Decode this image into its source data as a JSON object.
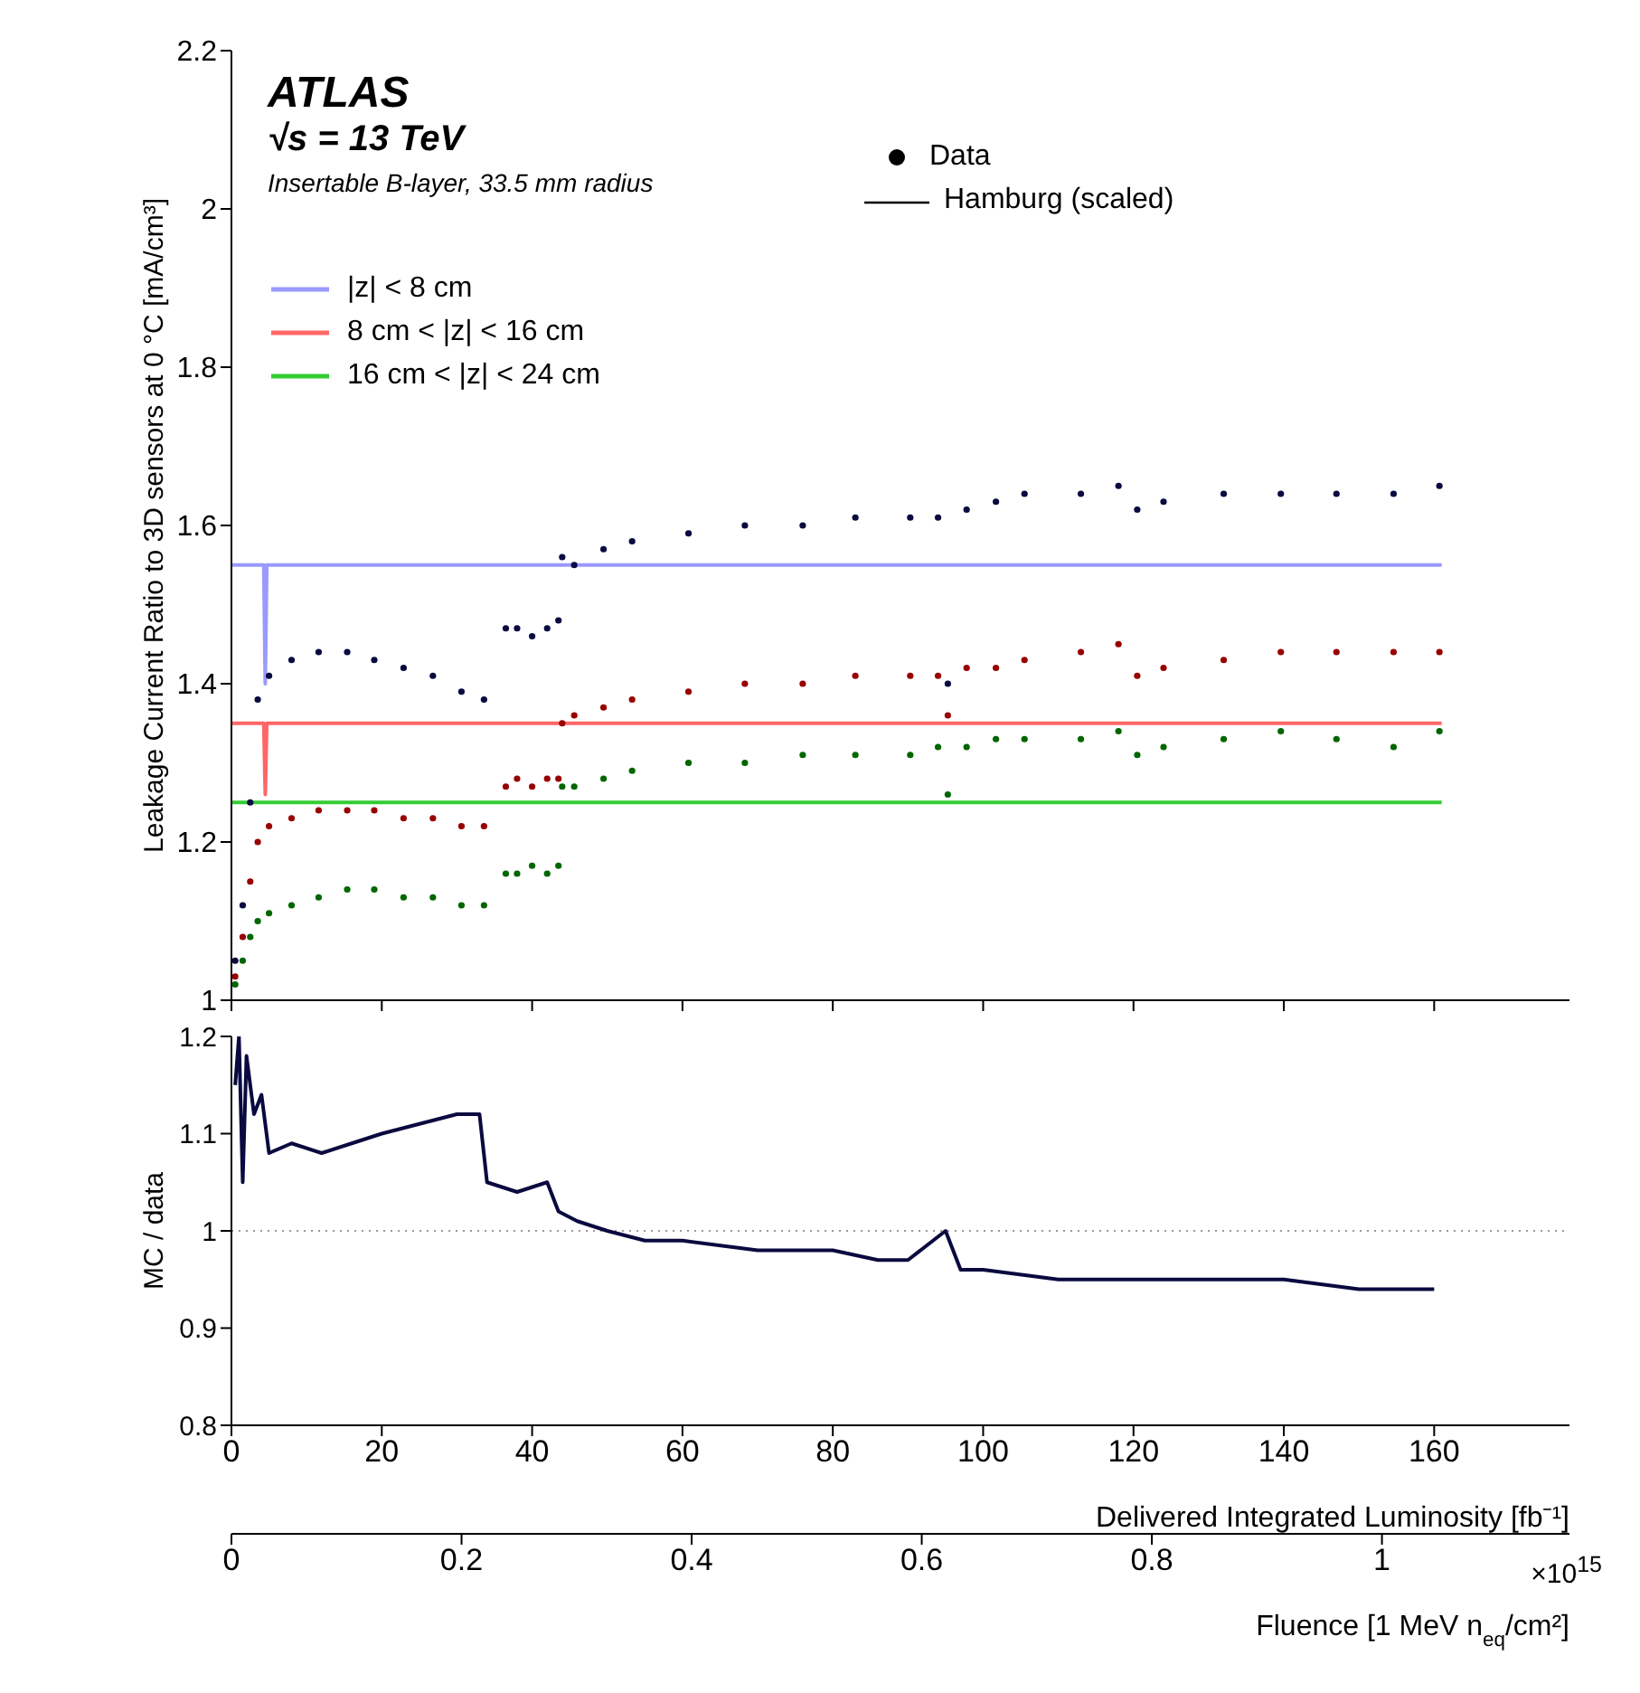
{
  "chart_data": [
    {
      "type": "scatter",
      "title": "ATLAS",
      "subtitle": "√s = 13 TeV",
      "ylabel": "Leakage Current Ratio to 3D sensors at 0 °C [mA/cm³]",
      "annotations": [
        "Insertable B-layer, 33.5 mm radius",
        "Data",
        "Hamburg (scaled)"
      ],
      "xlim": [
        0,
        178
      ],
      "xticks": [
        0,
        20,
        40,
        60,
        80,
        100,
        120,
        140,
        160
      ],
      "ylim": [
        1,
        2.2
      ],
      "yticks": [
        1,
        1.2,
        1.4,
        1.6,
        1.8,
        2,
        2.2
      ],
      "tick_labels": "y",
      "legend": "top left",
      "grid": false,
      "series": [
        {
          "name": "|z| < 8 cm",
          "type": "line",
          "color": "#9999ff",
          "marker": "none",
          "x": [
            0,
            4.3,
            4.5,
            4.7,
            161
          ],
          "values": [
            1.55,
            1.55,
            1.4,
            1.55,
            1.55
          ]
        },
        {
          "name": "8 cm < |z| < 16 cm",
          "type": "line",
          "color": "#ff6666",
          "marker": "none",
          "x": [
            0,
            4.3,
            4.5,
            4.7,
            161
          ],
          "values": [
            1.35,
            1.35,
            1.26,
            1.35,
            1.35
          ]
        },
        {
          "name": "16 cm < |z| < 24 cm",
          "type": "line",
          "color": "#33cc33",
          "marker": "none",
          "x": [
            0,
            161
          ],
          "values": [
            1.25,
            1.25
          ]
        },
        {
          "color": "#0a0a40",
          "marker": "circle",
          "x": [
            0.5,
            1.5,
            2.5,
            3.5,
            5,
            8,
            11.6,
            15.4,
            19,
            22.9,
            26.8,
            30.6,
            33.6,
            36.5,
            38,
            40,
            42,
            43.5,
            44,
            45.6,
            49.5,
            53.3,
            60.8,
            68.3,
            76,
            83,
            90.3,
            94,
            95.3,
            97.8,
            101.7,
            105.5,
            113,
            118,
            120.5,
            124,
            132,
            139.6,
            147,
            154.6,
            160.7
          ],
          "values": [
            1.05,
            1.12,
            1.25,
            1.38,
            1.41,
            1.43,
            1.44,
            1.44,
            1.43,
            1.42,
            1.41,
            1.39,
            1.38,
            1.47,
            1.47,
            1.46,
            1.47,
            1.48,
            1.56,
            1.55,
            1.57,
            1.58,
            1.59,
            1.6,
            1.6,
            1.61,
            1.61,
            1.61,
            1.4,
            1.62,
            1.63,
            1.64,
            1.64,
            1.65,
            1.62,
            1.63,
            1.64,
            1.64,
            1.64,
            1.64,
            1.65
          ]
        },
        {
          "color": "#990000",
          "marker": "circle",
          "x": [
            0.5,
            1.5,
            2.5,
            3.5,
            5,
            8,
            11.6,
            15.4,
            19,
            22.9,
            26.8,
            30.6,
            33.6,
            36.5,
            38,
            40,
            42,
            43.5,
            44,
            45.6,
            49.5,
            53.3,
            60.8,
            68.3,
            76,
            83,
            90.3,
            94,
            95.3,
            97.8,
            101.7,
            105.5,
            113,
            118,
            120.5,
            124,
            132,
            139.6,
            147,
            154.6,
            160.7
          ],
          "values": [
            1.03,
            1.08,
            1.15,
            1.2,
            1.22,
            1.23,
            1.24,
            1.24,
            1.24,
            1.23,
            1.23,
            1.22,
            1.22,
            1.27,
            1.28,
            1.27,
            1.28,
            1.28,
            1.35,
            1.36,
            1.37,
            1.38,
            1.39,
            1.4,
            1.4,
            1.41,
            1.41,
            1.41,
            1.36,
            1.42,
            1.42,
            1.43,
            1.44,
            1.45,
            1.41,
            1.42,
            1.43,
            1.44,
            1.44,
            1.44,
            1.44
          ]
        },
        {
          "color": "#006600",
          "marker": "circle",
          "x": [
            0.5,
            1.5,
            2.5,
            3.5,
            5,
            8,
            11.6,
            15.4,
            19,
            22.9,
            26.8,
            30.6,
            33.6,
            36.5,
            38,
            40,
            42,
            43.5,
            44,
            45.6,
            49.5,
            53.3,
            60.8,
            68.3,
            76,
            83,
            90.3,
            94,
            95.3,
            97.8,
            101.7,
            105.5,
            113,
            118,
            120.5,
            124,
            132,
            139.6,
            147,
            154.6,
            160.7
          ],
          "values": [
            1.02,
            1.05,
            1.08,
            1.1,
            1.11,
            1.12,
            1.13,
            1.14,
            1.14,
            1.13,
            1.13,
            1.12,
            1.12,
            1.16,
            1.16,
            1.17,
            1.16,
            1.17,
            1.27,
            1.27,
            1.28,
            1.29,
            1.3,
            1.3,
            1.31,
            1.31,
            1.31,
            1.32,
            1.26,
            1.32,
            1.33,
            1.33,
            1.33,
            1.34,
            1.31,
            1.32,
            1.33,
            1.34,
            1.33,
            1.32,
            1.34
          ]
        }
      ]
    },
    {
      "type": "line",
      "xlabel": "Delivered Integrated Luminosity [fb⁻¹]",
      "x2label": "Fluence [1 MeV n$_{eq}$/cm²]",
      "ylabel": "MC / data",
      "annotations": [
        "×10$^{15}$"
      ],
      "xlim": [
        0,
        178
      ],
      "xticks": [
        0,
        20,
        40,
        60,
        80,
        100,
        120,
        140,
        160
      ],
      "x2lim": [
        0,
        1.163
      ],
      "x2ticks": [
        0,
        0.2,
        0.4,
        0.6,
        0.8,
        1
      ],
      "ylim": [
        0.8,
        1.2
      ],
      "yticks": [
        0.8,
        0.9,
        1,
        1.1,
        1.2
      ],
      "grid": false,
      "ref_lines": [
        {
          "axis": "y",
          "value": 1,
          "color": "#999999",
          "line_style": "dotted"
        }
      ],
      "series": [
        {
          "color": "#0a0a40",
          "marker": "none",
          "x": [
            0.5,
            1,
            1.5,
            2,
            3,
            4,
            5,
            8,
            12,
            16,
            20,
            25,
            30,
            33,
            34,
            38,
            42,
            43.5,
            46,
            50,
            55,
            60,
            70,
            80,
            86,
            90,
            95,
            97,
            100,
            110,
            120,
            130,
            140,
            150,
            160
          ],
          "values": [
            1.15,
            1.2,
            1.05,
            1.18,
            1.12,
            1.14,
            1.08,
            1.09,
            1.08,
            1.09,
            1.1,
            1.11,
            1.12,
            1.12,
            1.05,
            1.04,
            1.05,
            1.02,
            1.01,
            1.0,
            0.99,
            0.99,
            0.98,
            0.98,
            0.97,
            0.97,
            1.0,
            0.96,
            0.96,
            0.95,
            0.95,
            0.95,
            0.95,
            0.94,
            0.94
          ]
        }
      ]
    }
  ]
}
